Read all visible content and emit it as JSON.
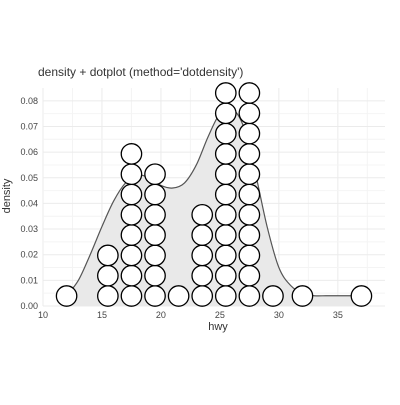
{
  "chart_data": {
    "type": "area",
    "title": "density + dotplot (method='dotdensity')",
    "xlabel": "hwy",
    "ylabel": "density",
    "xlim": [
      10,
      39
    ],
    "ylim": [
      0,
      0.085
    ],
    "x_ticks": [
      10,
      15,
      20,
      25,
      30,
      35
    ],
    "y_ticks": [
      0.0,
      0.01,
      0.02,
      0.03,
      0.04,
      0.05,
      0.06,
      0.07,
      0.08
    ],
    "y_tick_labels": [
      "0.00",
      "0.01",
      "0.02",
      "0.03",
      "0.04",
      "0.05",
      "0.06",
      "0.07",
      "0.08"
    ],
    "grid": true,
    "density": {
      "fill": "#e9e9e9",
      "stroke": "#555555",
      "x": [
        12,
        13,
        14,
        15,
        16,
        17,
        18,
        19,
        20,
        21,
        22,
        23,
        24,
        25,
        26,
        27,
        28,
        29,
        30,
        31,
        32,
        33,
        34,
        35,
        36,
        37
      ],
      "y": [
        0.004,
        0.01,
        0.02,
        0.031,
        0.041,
        0.048,
        0.051,
        0.05,
        0.047,
        0.046,
        0.048,
        0.055,
        0.066,
        0.075,
        0.077,
        0.07,
        0.052,
        0.031,
        0.015,
        0.008,
        0.005,
        0.004,
        0.004,
        0.004,
        0.004,
        0.004
      ]
    },
    "dotplot": {
      "dot_fill": "#ffffff",
      "dot_stroke": "#000000",
      "bins": [
        {
          "x": 12.0,
          "count": 1
        },
        {
          "x": 15.5,
          "count": 3
        },
        {
          "x": 17.5,
          "count": 8
        },
        {
          "x": 19.5,
          "count": 7
        },
        {
          "x": 21.5,
          "count": 1
        },
        {
          "x": 23.5,
          "count": 5
        },
        {
          "x": 25.5,
          "count": 11
        },
        {
          "x": 27.5,
          "count": 11
        },
        {
          "x": 29.5,
          "count": 1
        },
        {
          "x": 32.0,
          "count": 1
        },
        {
          "x": 37.0,
          "count": 1
        }
      ]
    }
  }
}
